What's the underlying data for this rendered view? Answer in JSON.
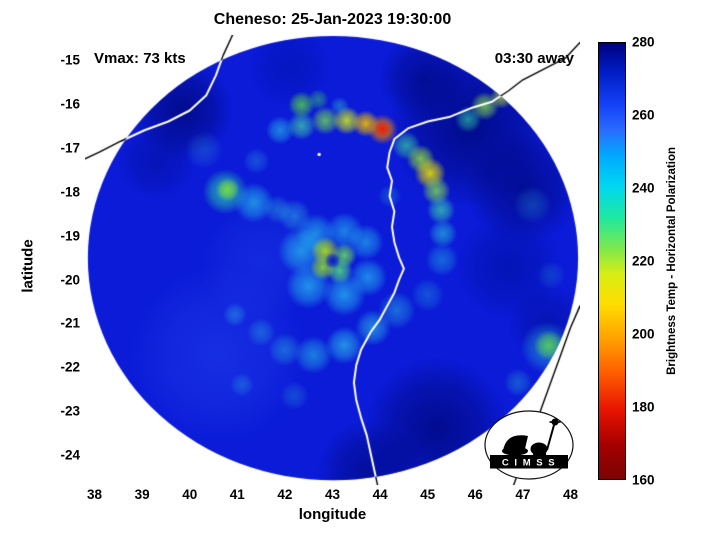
{
  "logo": {
    "label": "C I M S S"
  },
  "chart_data": {
    "type": "heatmap",
    "title": "Cheneso: 25-Jan-2023 19:30:00",
    "xlabel": "longitude",
    "ylabel": "latitude",
    "xlim": [
      37.8,
      48.2
    ],
    "ylim": [
      -24.68,
      -14.43
    ],
    "xticks": [
      38,
      39,
      40,
      41,
      42,
      43,
      44,
      45,
      46,
      47,
      48
    ],
    "yticks": [
      -15,
      -16,
      -17,
      -18,
      -19,
      -20,
      -21,
      -22,
      -23,
      -24
    ],
    "grid": false,
    "annotations": {
      "vmax": "Vmax: 73 kts",
      "eta": "03:30 away"
    },
    "colorbar": {
      "label": "Brightness Temp - Horizontal Polarization",
      "min": 160,
      "max": 280,
      "ticks": [
        160,
        180,
        200,
        220,
        240,
        260,
        280
      ],
      "gradient": [
        [
          0,
          "#7a0403"
        ],
        [
          0.08,
          "#a50000"
        ],
        [
          0.16,
          "#e81500"
        ],
        [
          0.24,
          "#ff5a00"
        ],
        [
          0.32,
          "#ffa000"
        ],
        [
          0.4,
          "#ffdc00"
        ],
        [
          0.47,
          "#d8ee14"
        ],
        [
          0.53,
          "#7ce84e"
        ],
        [
          0.6,
          "#1ee8a0"
        ],
        [
          0.67,
          "#00d8f0"
        ],
        [
          0.74,
          "#00aaff"
        ],
        [
          0.8,
          "#2a6cff"
        ],
        [
          0.86,
          "#1340f5"
        ],
        [
          0.93,
          "#001fc8"
        ],
        [
          1,
          "#00007f"
        ]
      ]
    },
    "swath": {
      "center_lon": 43.01,
      "center_lat": -19.51,
      "rx_deg": 5.15,
      "ry_deg": 5.06,
      "base_color": "#0b1bd8"
    },
    "features": [
      [
        45.9,
        -16.5,
        1.7,
        "#000a85",
        0.92
      ],
      [
        47.0,
        -17.9,
        1.2,
        "#000a85",
        0.8
      ],
      [
        46.7,
        -19.7,
        1.1,
        "#0011a5",
        0.65
      ],
      [
        45.2,
        -23.4,
        1.5,
        "#000a85",
        0.88
      ],
      [
        43.8,
        -24.4,
        1.1,
        "#000a85",
        0.75
      ],
      [
        39.85,
        -16.15,
        1.05,
        "#000a85",
        0.9
      ],
      [
        39.3,
        -17.3,
        0.8,
        "#000d95",
        0.5
      ],
      [
        42.1,
        -15.15,
        0.85,
        "#0013b2",
        0.6
      ],
      [
        44.9,
        -15.4,
        0.9,
        "#000a85",
        0.75
      ],
      [
        47.5,
        -21.0,
        0.8,
        "#000d90",
        0.5
      ],
      [
        40.6,
        -21.7,
        1.9,
        "#2547ef",
        0.45
      ],
      [
        41.5,
        -19.6,
        1.3,
        "#2141e9",
        0.4
      ],
      [
        40.3,
        -17.05,
        0.4,
        "#2f8fd8",
        0.35
      ],
      [
        41.4,
        -17.3,
        0.28,
        "#2f9fe0",
        0.4
      ],
      [
        42.35,
        -19.35,
        0.5,
        "#28c4f0",
        0.7
      ],
      [
        42.5,
        -20.15,
        0.48,
        "#28c4f0",
        0.7
      ],
      [
        43.25,
        -20.35,
        0.45,
        "#28c4f0",
        0.7
      ],
      [
        43.75,
        -19.95,
        0.4,
        "#28c4f0",
        0.65
      ],
      [
        43.7,
        -19.15,
        0.38,
        "#28c4f0",
        0.6
      ],
      [
        43.25,
        -18.9,
        0.4,
        "#28c4f0",
        0.6
      ],
      [
        42.65,
        -18.95,
        0.42,
        "#28c4f0",
        0.65
      ],
      [
        42.2,
        -18.55,
        0.35,
        "#30c0e8",
        0.5
      ],
      [
        41.85,
        -18.4,
        0.3,
        "#30b8e0",
        0.45
      ],
      [
        42.85,
        -19.35,
        0.3,
        "#aadf1e",
        0.95
      ],
      [
        43.25,
        -19.45,
        0.26,
        "#66d95c",
        0.9
      ],
      [
        43.15,
        -19.8,
        0.28,
        "#52d87e",
        0.9
      ],
      [
        42.8,
        -19.72,
        0.27,
        "#8ede2e",
        0.9
      ],
      [
        43.0,
        -19.57,
        0.17,
        "#0a18c8",
        0.95
      ],
      [
        40.75,
        -18.0,
        0.48,
        "#28c8b0",
        0.85
      ],
      [
        40.8,
        -17.95,
        0.25,
        "#7edc3c",
        0.9
      ],
      [
        41.35,
        -18.25,
        0.42,
        "#26c2ec",
        0.7
      ],
      [
        41.9,
        -16.6,
        0.3,
        "#28bce8",
        0.65
      ],
      [
        42.35,
        -16.5,
        0.3,
        "#3ecfa6",
        0.75
      ],
      [
        42.85,
        -16.38,
        0.3,
        "#6fda55",
        0.8
      ],
      [
        43.3,
        -16.38,
        0.3,
        "#c8e51e",
        0.9
      ],
      [
        43.7,
        -16.45,
        0.28,
        "#f0bc00",
        0.92
      ],
      [
        44.05,
        -16.58,
        0.32,
        "#f07d00",
        0.95
      ],
      [
        44.05,
        -16.57,
        0.17,
        "#e51e0f",
        1
      ],
      [
        42.35,
        -16.02,
        0.28,
        "#4ecb4e",
        0.85
      ],
      [
        42.7,
        -15.9,
        0.22,
        "#35b773",
        0.6
      ],
      [
        43.15,
        -16.05,
        0.2,
        "#2fb9d2",
        0.5
      ],
      [
        46.2,
        -16.05,
        0.3,
        "#7ed84e",
        0.8
      ],
      [
        45.85,
        -16.35,
        0.28,
        "#2ec0a2",
        0.7
      ],
      [
        46.55,
        -15.85,
        0.24,
        "#b3dc32",
        0.7
      ],
      [
        44.55,
        -16.95,
        0.3,
        "#36c8a0",
        0.75
      ],
      [
        44.85,
        -17.25,
        0.3,
        "#8edc3e",
        0.85
      ],
      [
        45.05,
        -17.58,
        0.33,
        "#e8e000",
        0.9
      ],
      [
        45.18,
        -17.98,
        0.3,
        "#7ed655",
        0.85
      ],
      [
        45.28,
        -18.42,
        0.3,
        "#36c8ae",
        0.8
      ],
      [
        45.32,
        -18.95,
        0.3,
        "#28b6da",
        0.7
      ],
      [
        45.3,
        -19.55,
        0.35,
        "#21a6e2",
        0.55
      ],
      [
        45.0,
        -20.35,
        0.35,
        "#2096de",
        0.45
      ],
      [
        44.2,
        -18.1,
        0.25,
        "#2590d8",
        0.4
      ],
      [
        44.35,
        -20.7,
        0.4,
        "#28aede",
        0.55
      ],
      [
        43.85,
        -21.1,
        0.38,
        "#2fc0e8",
        0.65
      ],
      [
        43.25,
        -21.5,
        0.4,
        "#2fc8ec",
        0.68
      ],
      [
        42.6,
        -21.72,
        0.4,
        "#28c0e8",
        0.6
      ],
      [
        42.0,
        -21.6,
        0.35,
        "#28aee0",
        0.5
      ],
      [
        41.5,
        -21.2,
        0.3,
        "#28a6de",
        0.45
      ],
      [
        40.95,
        -20.8,
        0.25,
        "#2fb4e6",
        0.45
      ],
      [
        41.1,
        -22.4,
        0.25,
        "#28a6de",
        0.4
      ],
      [
        42.2,
        -22.65,
        0.3,
        "#2896d2",
        0.38
      ],
      [
        47.5,
        -21.55,
        0.55,
        "#28b4dc",
        0.6
      ],
      [
        47.55,
        -21.5,
        0.32,
        "#58d058",
        0.9
      ],
      [
        46.9,
        -22.35,
        0.3,
        "#28a4d4",
        0.45
      ],
      [
        47.2,
        -18.3,
        0.4,
        "#2080cc",
        0.4
      ],
      [
        47.6,
        -19.9,
        0.3,
        "#2080cc",
        0.35
      ]
    ],
    "island": [
      42.72,
      -17.15
    ],
    "coastlines": {
      "madagascar_west": [
        [
          48.2,
          -14.6
        ],
        [
          47.9,
          -14.95
        ],
        [
          47.45,
          -15.2
        ],
        [
          47.0,
          -15.45
        ],
        [
          46.7,
          -15.7
        ],
        [
          46.35,
          -15.95
        ],
        [
          45.9,
          -16.1
        ],
        [
          45.45,
          -16.3
        ],
        [
          45.0,
          -16.4
        ],
        [
          44.6,
          -16.55
        ],
        [
          44.3,
          -16.8
        ],
        [
          44.2,
          -17.1
        ],
        [
          44.15,
          -17.45
        ],
        [
          44.25,
          -17.75
        ],
        [
          44.2,
          -18.1
        ],
        [
          44.3,
          -18.45
        ],
        [
          44.25,
          -18.8
        ],
        [
          44.3,
          -19.15
        ],
        [
          44.4,
          -19.5
        ],
        [
          44.5,
          -19.75
        ],
        [
          44.4,
          -20.0
        ],
        [
          44.3,
          -20.3
        ],
        [
          44.15,
          -20.6
        ],
        [
          44.0,
          -20.9
        ],
        [
          43.8,
          -21.2
        ],
        [
          43.6,
          -21.6
        ],
        [
          43.5,
          -21.95
        ],
        [
          43.45,
          -22.35
        ],
        [
          43.5,
          -22.75
        ],
        [
          43.6,
          -23.15
        ],
        [
          43.72,
          -23.55
        ],
        [
          43.8,
          -23.95
        ],
        [
          43.88,
          -24.35
        ],
        [
          43.95,
          -24.7
        ]
      ],
      "madagascar_east": [
        [
          48.2,
          -20.6
        ],
        [
          48.0,
          -21.1
        ],
        [
          47.8,
          -21.7
        ],
        [
          47.6,
          -22.3
        ],
        [
          47.4,
          -22.9
        ],
        [
          47.2,
          -23.5
        ],
        [
          47.0,
          -24.1
        ],
        [
          46.8,
          -24.7
        ]
      ],
      "africa": [
        [
          40.9,
          -14.43
        ],
        [
          40.7,
          -14.9
        ],
        [
          40.55,
          -15.35
        ],
        [
          40.35,
          -15.8
        ],
        [
          40.0,
          -16.15
        ],
        [
          39.55,
          -16.4
        ],
        [
          39.05,
          -16.6
        ],
        [
          38.55,
          -16.85
        ],
        [
          38.1,
          -17.1
        ],
        [
          37.8,
          -17.25
        ]
      ]
    }
  }
}
